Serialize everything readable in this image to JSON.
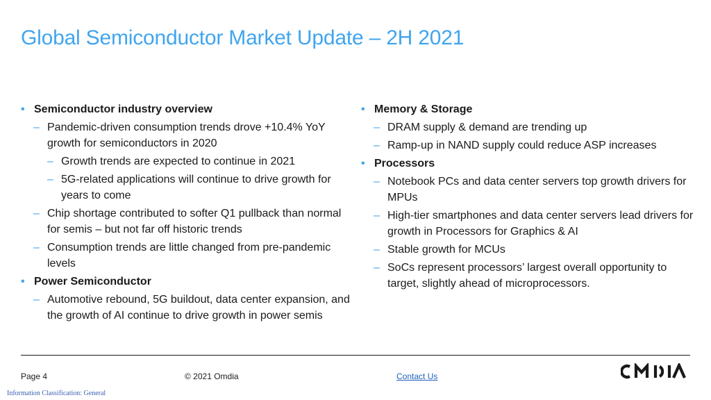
{
  "title": "Global Semiconductor Market Update – 2H 2021",
  "bullet_glyph": "•",
  "dash_glyph": "–",
  "left": [
    {
      "level": 1,
      "text": "Semiconductor industry overview"
    },
    {
      "level": 2,
      "text": "Pandemic-driven consumption trends drove +10.4% YoY growth for semiconductors in 2020"
    },
    {
      "level": 3,
      "text": "Growth trends are expected to continue in 2021"
    },
    {
      "level": 3,
      "text": "5G-related applications will continue to drive growth for years to come"
    },
    {
      "level": 2,
      "text": "Chip shortage contributed to softer Q1 pullback than normal for semis – but not far off historic trends"
    },
    {
      "level": 2,
      "text": "Consumption trends are little changed from pre-pandemic levels"
    },
    {
      "level": 1,
      "text": "Power Semiconductor"
    },
    {
      "level": 2,
      "text": "Automotive rebound, 5G buildout, data center expansion, and the growth of AI continue to drive growth in power semis"
    }
  ],
  "right": [
    {
      "level": 1,
      "text": "Memory & Storage"
    },
    {
      "level": 2,
      "text": "DRAM supply & demand are trending up"
    },
    {
      "level": 2,
      "text": "Ramp-up in NAND supply could reduce ASP increases"
    },
    {
      "level": 1,
      "text": "Processors"
    },
    {
      "level": 2,
      "text": "Notebook PCs and data center servers top growth drivers for MPUs"
    },
    {
      "level": 2,
      "text": "High-tier smartphones and data center servers lead drivers for growth in Processors for Graphics & AI"
    },
    {
      "level": 2,
      "text": "Stable growth for MCUs"
    },
    {
      "level": 2,
      "text": "SoCs represent processors’ largest overall opportunity to target, slightly ahead of microprocessors."
    }
  ],
  "footer": {
    "page": "Page 4",
    "copyright": "© 2021 Omdia",
    "contact": "Contact Us",
    "classification": "Information Classification: General"
  },
  "logo": {
    "text": "OMDIA",
    "icon": "omdia-logo"
  },
  "colors": {
    "accent": "#41a5ee",
    "link": "#1f5fbf",
    "text": "#1a1a1a"
  }
}
